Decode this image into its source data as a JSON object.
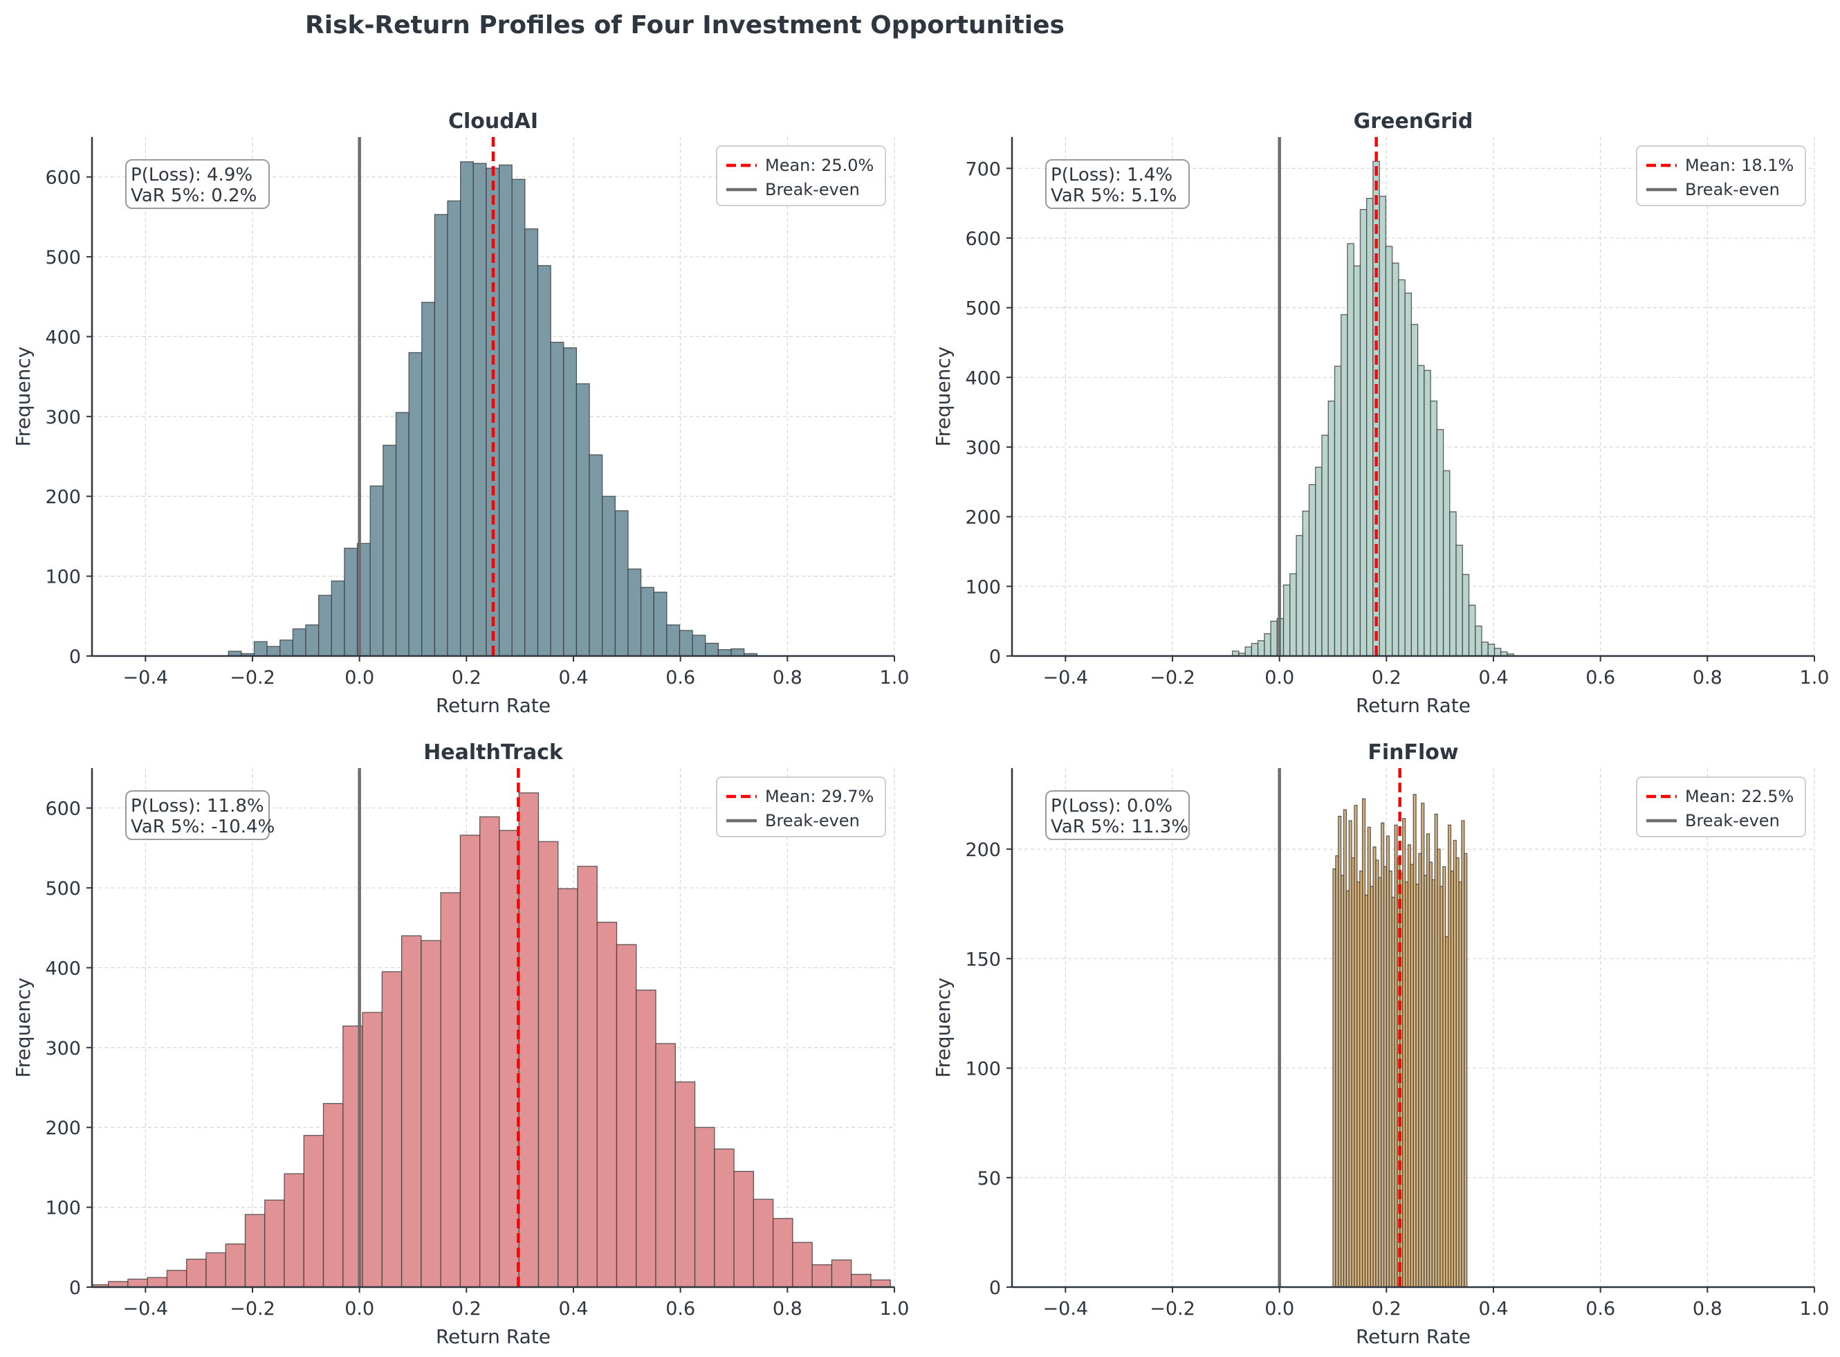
{
  "figure": {
    "suptitle": "Risk-Return Profiles of Four Investment Opportunities"
  },
  "colors": {
    "mean_line": "#ff0000",
    "breakeven_line": "#6e6e6e",
    "text": "#2e3640",
    "grid": "#d6d6d6"
  },
  "chart_data": [
    {
      "type": "bar",
      "title": "CloudAI",
      "xlabel": "Return Rate",
      "ylabel": "Frequency",
      "xlim": [
        -0.5,
        1.0
      ],
      "ylim": [
        0,
        650
      ],
      "xticks": [
        -0.4,
        -0.2,
        0.0,
        0.2,
        0.4,
        0.6,
        0.8,
        1.0
      ],
      "xtick_labels": [
        "−0.4",
        "−0.2",
        "0.0",
        "0.2",
        "0.4",
        "0.6",
        "0.8",
        "1.0"
      ],
      "yticks": [
        0,
        100,
        200,
        300,
        400,
        500,
        600
      ],
      "color": "#7b9aa6",
      "bin_start": -0.245,
      "bin_width": 0.0241,
      "counts": [
        6,
        3,
        18,
        12,
        20,
        34,
        39,
        76,
        94,
        135,
        141,
        213,
        264,
        305,
        380,
        443,
        553,
        570,
        619,
        617,
        611,
        615,
        597,
        535,
        489,
        393,
        386,
        341,
        252,
        200,
        182,
        109,
        86,
        80,
        39,
        32,
        26,
        16,
        8,
        9,
        3
      ],
      "mean": 0.25,
      "mean_label": "Mean: 25.0%",
      "breakeven_x": 0.0,
      "breakeven_label": "Break-even",
      "stats": [
        "P(Loss): 4.9%",
        "VaR 5%: 0.2%"
      ]
    },
    {
      "type": "bar",
      "title": "GreenGrid",
      "xlabel": "Return Rate",
      "ylabel": "Frequency",
      "xlim": [
        -0.5,
        1.0
      ],
      "ylim": [
        0,
        745
      ],
      "xticks": [
        -0.4,
        -0.2,
        0.0,
        0.2,
        0.4,
        0.6,
        0.8,
        1.0
      ],
      "xtick_labels": [
        "−0.4",
        "−0.2",
        "0.0",
        "0.2",
        "0.4",
        "0.6",
        "0.8",
        "1.0"
      ],
      "yticks": [
        0,
        100,
        200,
        300,
        400,
        500,
        600,
        700
      ],
      "color": "#b9d3cd",
      "bin_start": -0.088,
      "bin_width": 0.01195,
      "counts": [
        7,
        4,
        13,
        18,
        22,
        32,
        50,
        54,
        102,
        118,
        173,
        208,
        246,
        271,
        317,
        366,
        416,
        490,
        592,
        560,
        641,
        657,
        710,
        660,
        588,
        564,
        540,
        521,
        476,
        417,
        410,
        366,
        325,
        266,
        207,
        159,
        117,
        73,
        43,
        20,
        17,
        11,
        6,
        3
      ],
      "mean": 0.181,
      "mean_label": "Mean: 18.1%",
      "breakeven_x": 0.0,
      "breakeven_label": "Break-even",
      "stats": [
        "P(Loss): 1.4%",
        "VaR 5%: 5.1%"
      ]
    },
    {
      "type": "bar",
      "title": "HealthTrack",
      "xlabel": "Return Rate",
      "ylabel": "Frequency",
      "xlim": [
        -0.5,
        1.0
      ],
      "ylim": [
        0,
        650
      ],
      "xticks": [
        -0.4,
        -0.2,
        0.0,
        0.2,
        0.4,
        0.6,
        0.8,
        1.0
      ],
      "xtick_labels": [
        "−0.4",
        "−0.2",
        "0.0",
        "0.2",
        "0.4",
        "0.6",
        "0.8",
        "1.0"
      ],
      "yticks": [
        0,
        100,
        200,
        300,
        400,
        500,
        600
      ],
      "color": "#e19294",
      "bin_start": -0.506,
      "bin_width": 0.03655,
      "counts": [
        3,
        7,
        10,
        12,
        21,
        35,
        43,
        54,
        91,
        109,
        142,
        190,
        230,
        327,
        344,
        395,
        440,
        434,
        494,
        566,
        589,
        572,
        619,
        558,
        499,
        527,
        457,
        429,
        372,
        305,
        257,
        200,
        173,
        145,
        110,
        86,
        56,
        28,
        34,
        16,
        9
      ],
      "mean": 0.297,
      "mean_label": "Mean: 29.7%",
      "breakeven_x": 0.0,
      "breakeven_label": "Break-even",
      "stats": [
        "P(Loss): 11.8%",
        "VaR 5%: -10.4%"
      ]
    },
    {
      "type": "bar",
      "title": "FinFlow",
      "xlabel": "Return Rate",
      "ylabel": "Frequency",
      "xlim": [
        -0.5,
        1.0
      ],
      "ylim": [
        0,
        237
      ],
      "xticks": [
        -0.4,
        -0.2,
        0.0,
        0.2,
        0.4,
        0.6,
        0.8,
        1.0
      ],
      "xtick_labels": [
        "−0.4",
        "−0.2",
        "0.0",
        "0.2",
        "0.4",
        "0.6",
        "0.8",
        "1.0"
      ],
      "yticks": [
        0,
        50,
        100,
        150,
        200
      ],
      "color": "#d9b47c",
      "bin_start": 0.1,
      "bin_width": 0.00501,
      "counts": [
        191,
        197,
        215,
        188,
        218,
        181,
        213,
        196,
        220,
        185,
        190,
        223,
        179,
        210,
        183,
        201,
        195,
        187,
        212,
        192,
        206,
        190,
        178,
        211,
        196,
        189,
        214,
        185,
        202,
        193,
        225,
        184,
        198,
        221,
        188,
        207,
        194,
        186,
        216,
        200,
        183,
        192,
        160,
        211,
        190,
        204,
        196,
        185,
        213,
        198
      ],
      "mean": 0.225,
      "mean_label": "Mean: 22.5%",
      "breakeven_x": 0.0,
      "breakeven_label": "Break-even",
      "stats": [
        "P(Loss): 0.0%",
        "VaR 5%: 11.3%"
      ]
    }
  ]
}
